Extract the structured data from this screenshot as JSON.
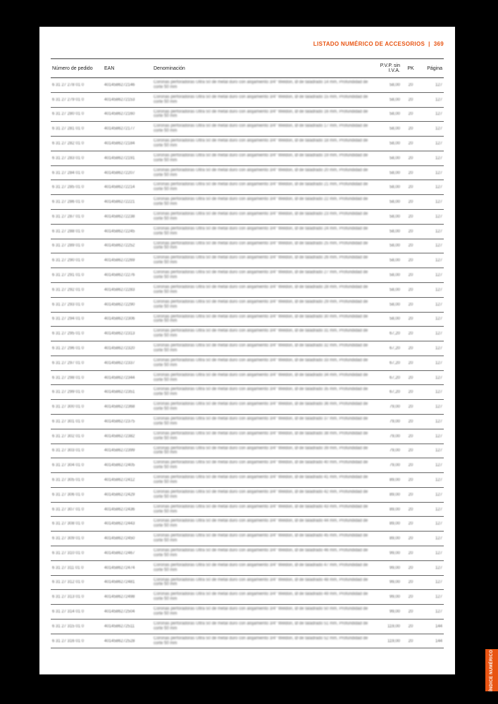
{
  "header": {
    "title": "LISTADO NUMÉRICO DE ACCESORIOS",
    "page_no": "369"
  },
  "sidetab": "ÍNDICE NUMÉRICO",
  "columns": {
    "c1": "Número de pedido",
    "c2": "EAN",
    "c3": "Denominación",
    "c4": "P.V.P. sin I.V.A.",
    "c5": "PK",
    "c6": "Página"
  },
  "desc_template": "Coronas perforadoras Ultra 50 de metal duro con alojamiento 3/4\" Weldon, Ø de taladrado {D} mm, Profundidad de corte {C} mm",
  "rows": [
    {
      "p": "6 31 27 278 01 0",
      "e": "4014586272146",
      "d": 14,
      "c": 50,
      "v": "58,00",
      "pk": "20",
      "pg": "127"
    },
    {
      "p": "6 31 27 279 01 0",
      "e": "4014586272153",
      "d": 15,
      "c": 50,
      "v": "58,00",
      "pk": "20",
      "pg": "127"
    },
    {
      "p": "6 31 27 280 01 0",
      "e": "4014586272160",
      "d": 16,
      "c": 50,
      "v": "58,00",
      "pk": "20",
      "pg": "127"
    },
    {
      "p": "6 31 27 281 01 0",
      "e": "4014586272177",
      "d": 17,
      "c": 50,
      "v": "58,00",
      "pk": "20",
      "pg": "127"
    },
    {
      "p": "6 31 27 282 01 0",
      "e": "4014586272184",
      "d": 18,
      "c": 50,
      "v": "58,00",
      "pk": "20",
      "pg": "127"
    },
    {
      "p": "6 31 27 283 01 0",
      "e": "4014586272191",
      "d": 19,
      "c": 50,
      "v": "58,00",
      "pk": "20",
      "pg": "127"
    },
    {
      "p": "6 31 27 284 01 0",
      "e": "4014586272207",
      "d": 20,
      "c": 50,
      "v": "58,00",
      "pk": "20",
      "pg": "127"
    },
    {
      "p": "6 31 27 285 01 0",
      "e": "4014586272214",
      "d": 21,
      "c": 50,
      "v": "58,00",
      "pk": "20",
      "pg": "127"
    },
    {
      "p": "6 31 27 286 01 0",
      "e": "4014586272221",
      "d": 22,
      "c": 50,
      "v": "58,00",
      "pk": "20",
      "pg": "127"
    },
    {
      "p": "6 31 27 287 01 0",
      "e": "4014586272238",
      "d": 23,
      "c": 50,
      "v": "58,00",
      "pk": "20",
      "pg": "127"
    },
    {
      "p": "6 31 27 288 01 0",
      "e": "4014586272245",
      "d": 24,
      "c": 50,
      "v": "58,00",
      "pk": "20",
      "pg": "127"
    },
    {
      "p": "6 31 27 289 01 0",
      "e": "4014586272252",
      "d": 25,
      "c": 50,
      "v": "58,00",
      "pk": "20",
      "pg": "127"
    },
    {
      "p": "6 31 27 290 01 0",
      "e": "4014586272269",
      "d": 26,
      "c": 50,
      "v": "58,00",
      "pk": "20",
      "pg": "127"
    },
    {
      "p": "6 31 27 291 01 0",
      "e": "4014586272276",
      "d": 27,
      "c": 50,
      "v": "58,00",
      "pk": "20",
      "pg": "127"
    },
    {
      "p": "6 31 27 292 01 0",
      "e": "4014586272283",
      "d": 28,
      "c": 50,
      "v": "58,00",
      "pk": "20",
      "pg": "127"
    },
    {
      "p": "6 31 27 293 01 0",
      "e": "4014586272290",
      "d": 29,
      "c": 50,
      "v": "58,00",
      "pk": "20",
      "pg": "127"
    },
    {
      "p": "6 31 27 294 01 0",
      "e": "4014586272306",
      "d": 30,
      "c": 50,
      "v": "58,00",
      "pk": "20",
      "pg": "127"
    },
    {
      "p": "6 31 27 295 01 0",
      "e": "4014586272313",
      "d": 31,
      "c": 50,
      "v": "67,20",
      "pk": "20",
      "pg": "127"
    },
    {
      "p": "6 31 27 296 01 0",
      "e": "4014586272320",
      "d": 32,
      "c": 50,
      "v": "67,20",
      "pk": "20",
      "pg": "127"
    },
    {
      "p": "6 31 27 297 01 0",
      "e": "4014586272337",
      "d": 33,
      "c": 50,
      "v": "67,20",
      "pk": "20",
      "pg": "127"
    },
    {
      "p": "6 31 27 298 01 0",
      "e": "4014586272344",
      "d": 34,
      "c": 50,
      "v": "67,20",
      "pk": "20",
      "pg": "127"
    },
    {
      "p": "6 31 27 299 01 0",
      "e": "4014586272351",
      "d": 35,
      "c": 50,
      "v": "67,20",
      "pk": "20",
      "pg": "127"
    },
    {
      "p": "6 31 27 300 01 0",
      "e": "4014586272368",
      "d": 36,
      "c": 50,
      "v": "79,00",
      "pk": "20",
      "pg": "127"
    },
    {
      "p": "6 31 27 301 01 0",
      "e": "4014586272375",
      "d": 37,
      "c": 50,
      "v": "79,00",
      "pk": "20",
      "pg": "127"
    },
    {
      "p": "6 31 27 302 01 0",
      "e": "4014586272382",
      "d": 38,
      "c": 50,
      "v": "79,00",
      "pk": "20",
      "pg": "127"
    },
    {
      "p": "6 31 27 303 01 0",
      "e": "4014586272399",
      "d": 39,
      "c": 50,
      "v": "79,00",
      "pk": "20",
      "pg": "127"
    },
    {
      "p": "6 31 27 304 01 0",
      "e": "4014586272405",
      "d": 40,
      "c": 50,
      "v": "79,00",
      "pk": "20",
      "pg": "127"
    },
    {
      "p": "6 31 27 305 01 0",
      "e": "4014586272412",
      "d": 41,
      "c": 50,
      "v": "89,00",
      "pk": "20",
      "pg": "127"
    },
    {
      "p": "6 31 27 306 01 0",
      "e": "4014586272429",
      "d": 42,
      "c": 50,
      "v": "89,00",
      "pk": "20",
      "pg": "127"
    },
    {
      "p": "6 31 27 307 01 0",
      "e": "4014586272436",
      "d": 43,
      "c": 50,
      "v": "89,00",
      "pk": "20",
      "pg": "127"
    },
    {
      "p": "6 31 27 308 01 0",
      "e": "4014586272443",
      "d": 44,
      "c": 50,
      "v": "89,00",
      "pk": "20",
      "pg": "127"
    },
    {
      "p": "6 31 27 309 01 0",
      "e": "4014586272450",
      "d": 45,
      "c": 50,
      "v": "89,00",
      "pk": "20",
      "pg": "127"
    },
    {
      "p": "6 31 27 310 01 0",
      "e": "4014586272467",
      "d": 46,
      "c": 50,
      "v": "99,00",
      "pk": "20",
      "pg": "127"
    },
    {
      "p": "6 31 27 311 01 0",
      "e": "4014586272474",
      "d": 47,
      "c": 50,
      "v": "99,00",
      "pk": "20",
      "pg": "127"
    },
    {
      "p": "6 31 27 312 01 0",
      "e": "4014586272481",
      "d": 48,
      "c": 50,
      "v": "99,00",
      "pk": "20",
      "pg": "127"
    },
    {
      "p": "6 31 27 313 01 0",
      "e": "4014586272498",
      "d": 49,
      "c": 50,
      "v": "99,00",
      "pk": "20",
      "pg": "127"
    },
    {
      "p": "6 31 27 314 01 0",
      "e": "4014586272504",
      "d": 50,
      "c": 50,
      "v": "99,00",
      "pk": "20",
      "pg": "127"
    },
    {
      "p": "6 31 27 315 01 0",
      "e": "4014586272511",
      "d": 51,
      "c": 50,
      "v": "119,00",
      "pk": "20",
      "pg": "144"
    },
    {
      "p": "6 31 27 316 01 0",
      "e": "4014586272528",
      "d": 52,
      "c": 50,
      "v": "119,00",
      "pk": "20",
      "pg": "144"
    }
  ]
}
